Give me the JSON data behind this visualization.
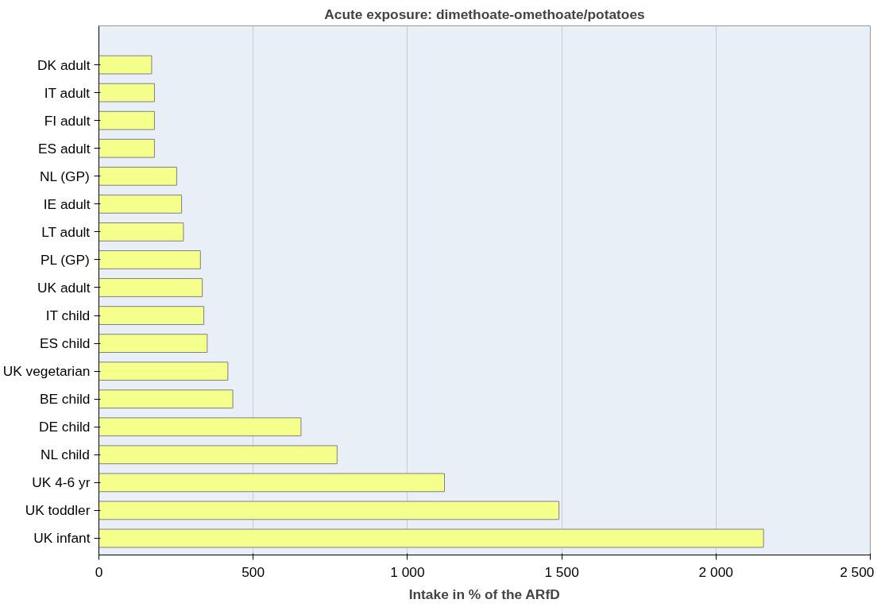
{
  "chart_data": {
    "type": "bar",
    "orientation": "horizontal",
    "title": "Acute exposure: dimethoate-omethoate/potatoes",
    "xlabel": "Intake in % of the ARfD",
    "categories": [
      "DK adult",
      "IT adult",
      "FI adult",
      "ES adult",
      "NL (GP)",
      "IE adult",
      "LT adult",
      "PL (GP)",
      "UK adult",
      "IT child",
      "ES child",
      "UK vegetarian",
      "BE child",
      "DE child",
      "NL child",
      "UK 4-6 yr",
      "UK toddler",
      "UK infant"
    ],
    "values": [
      171,
      180,
      180,
      180,
      252,
      268,
      274,
      329,
      335,
      340,
      351,
      418,
      434,
      655,
      772,
      1120,
      1491,
      2154
    ],
    "color": "#f5ff8c",
    "xlim": [
      0,
      2500
    ],
    "xticks": [
      0,
      500,
      {
        "value": 1000,
        "label": "1 000"
      },
      {
        "value": 1500,
        "label": "1 500"
      },
      {
        "value": 2000,
        "label": "2 000"
      },
      {
        "value": 2500,
        "label": "2 500"
      }
    ],
    "grid": "x"
  }
}
